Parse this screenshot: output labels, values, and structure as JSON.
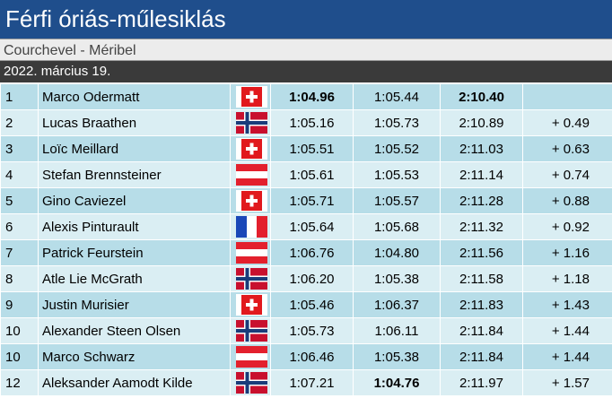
{
  "title": "Férfi óriás-műlesiklás",
  "venue": "Courchevel - Méribel",
  "date": "2022. március 19.",
  "colors": {
    "title_bg": "#1f4e8c",
    "date_bg": "#3a3a3a",
    "row_odd": "#b7dde8",
    "row_even": "#daeef3"
  },
  "results": [
    {
      "rank": "1",
      "name": "Marco Odermatt",
      "flag": "switzerland-flag-icon",
      "run1": "1:04.96",
      "run2": "1:05.44",
      "total": "2:10.40",
      "gap": "",
      "bold": [
        "run1",
        "total"
      ]
    },
    {
      "rank": "2",
      "name": "Lucas Braathen",
      "flag": "norway-flag-icon",
      "run1": "1:05.16",
      "run2": "1:05.73",
      "total": "2:10.89",
      "gap": "+ 0.49",
      "bold": []
    },
    {
      "rank": "3",
      "name": "Loïc Meillard",
      "flag": "switzerland-flag-icon",
      "run1": "1:05.51",
      "run2": "1:05.52",
      "total": "2:11.03",
      "gap": "+ 0.63",
      "bold": []
    },
    {
      "rank": "4",
      "name": "Stefan Brennsteiner",
      "flag": "austria-flag-icon",
      "run1": "1:05.61",
      "run2": "1:05.53",
      "total": "2:11.14",
      "gap": "+ 0.74",
      "bold": []
    },
    {
      "rank": "5",
      "name": "Gino Caviezel",
      "flag": "switzerland-flag-icon",
      "run1": "1:05.71",
      "run2": "1:05.57",
      "total": "2:11.28",
      "gap": "+ 0.88",
      "bold": []
    },
    {
      "rank": "6",
      "name": "Alexis Pinturault",
      "flag": "france-flag-icon",
      "run1": "1:05.64",
      "run2": "1:05.68",
      "total": "2:11.32",
      "gap": "+ 0.92",
      "bold": []
    },
    {
      "rank": "7",
      "name": "Patrick Feurstein",
      "flag": "austria-flag-icon",
      "run1": "1:06.76",
      "run2": "1:04.80",
      "total": "2:11.56",
      "gap": "+ 1.16",
      "bold": []
    },
    {
      "rank": "8",
      "name": "Atle Lie McGrath",
      "flag": "norway-flag-icon",
      "run1": "1:06.20",
      "run2": "1:05.38",
      "total": "2:11.58",
      "gap": "+ 1.18",
      "bold": []
    },
    {
      "rank": "9",
      "name": "Justin Murisier",
      "flag": "switzerland-flag-icon",
      "run1": "1:05.46",
      "run2": "1:06.37",
      "total": "2:11.83",
      "gap": "+ 1.43",
      "bold": []
    },
    {
      "rank": "10",
      "name": "Alexander Steen Olsen",
      "flag": "norway-flag-icon",
      "run1": "1:05.73",
      "run2": "1:06.11",
      "total": "2:11.84",
      "gap": "+ 1.44",
      "bold": []
    },
    {
      "rank": "10",
      "name": "Marco Schwarz",
      "flag": "austria-flag-icon",
      "run1": "1:06.46",
      "run2": "1:05.38",
      "total": "2:11.84",
      "gap": "+ 1.44",
      "bold": []
    },
    {
      "rank": "12",
      "name": "Aleksander Aamodt Kilde",
      "flag": "norway-flag-icon",
      "run1": "1:07.21",
      "run2": "1:04.76",
      "total": "2:11.97",
      "gap": "+ 1.57",
      "bold": [
        "run2"
      ]
    }
  ]
}
